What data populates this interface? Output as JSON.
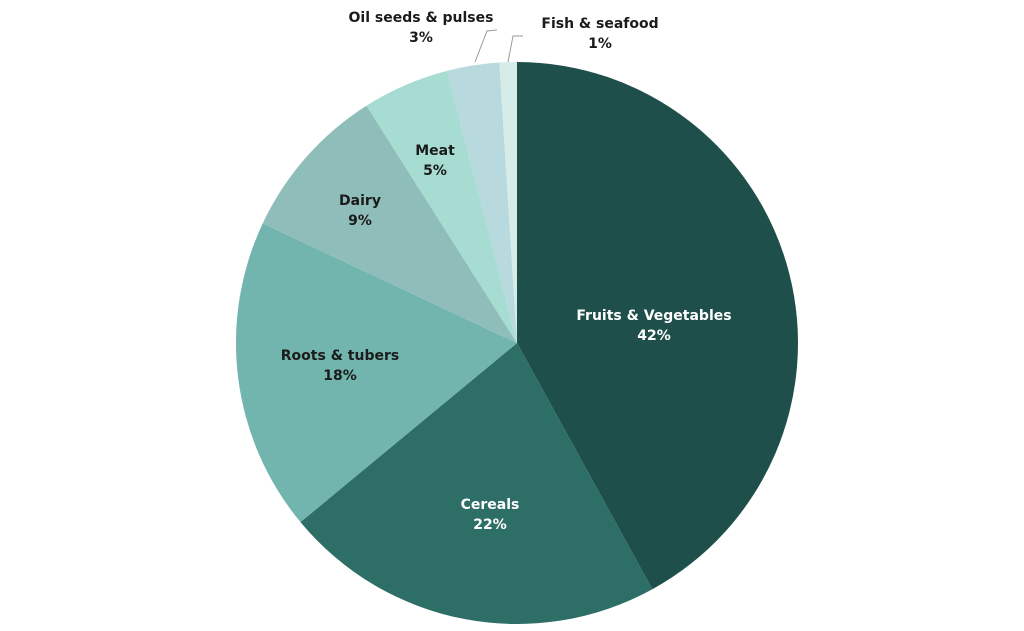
{
  "chart_data": {
    "type": "pie",
    "title": "",
    "start_angle_deg": 0,
    "direction": "clockwise",
    "slices": [
      {
        "name": "Fruits & Vegetables",
        "value": 42,
        "label_value": "42%",
        "color": "#1f4f4a",
        "text_color": "#ffffff",
        "label_style": "inside"
      },
      {
        "name": "Cereals",
        "value": 22,
        "label_value": "22%",
        "color": "#2d6e66",
        "text_color": "#ffffff",
        "label_style": "inside"
      },
      {
        "name": "Roots & tubers",
        "value": 18,
        "label_value": "18%",
        "color": "#72b5ae",
        "text_color": "#1b1b1b",
        "label_style": "inside"
      },
      {
        "name": "Dairy",
        "value": 9,
        "label_value": "9%",
        "color": "#8fbdba",
        "text_color": "#1b1b1b",
        "label_style": "inside"
      },
      {
        "name": "Meat",
        "value": 5,
        "label_value": "5%",
        "color": "#a7dcd3",
        "text_color": "#1b1b1b",
        "label_style": "inside"
      },
      {
        "name": "Oil seeds & pulses",
        "value": 3,
        "label_value": "3%",
        "color": "#b8d9dd",
        "text_color": "#1b1b1b",
        "label_style": "outside"
      },
      {
        "name": "Fish & seafood",
        "value": 1,
        "label_value": "1%",
        "color": "#d5ece8",
        "text_color": "#1b1b1b",
        "label_style": "outside"
      }
    ]
  }
}
